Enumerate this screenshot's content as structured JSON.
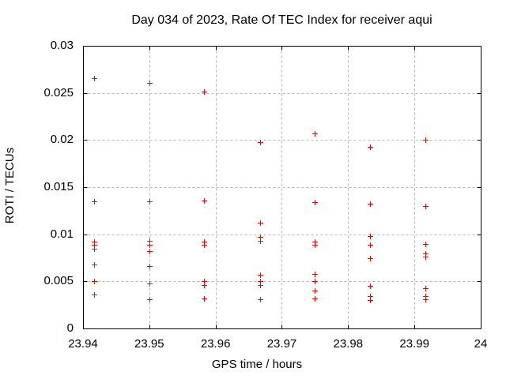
{
  "chart_data": {
    "type": "scatter",
    "title": "Day 034 of 2023, Rate Of TEC Index for receiver aqui",
    "xlabel": "GPS time / hours",
    "ylabel": "ROTI / TECUs",
    "xlim": [
      23.94,
      24
    ],
    "ylim": [
      0,
      0.03
    ],
    "xticks": [
      23.94,
      23.95,
      23.96,
      23.97,
      23.98,
      23.99,
      24
    ],
    "xtick_labels": [
      "23.94",
      "23.95",
      "23.96",
      "23.97",
      "23.98",
      "23.99",
      "24"
    ],
    "yticks": [
      0,
      0.005,
      0.01,
      0.015,
      0.02,
      0.025,
      0.03
    ],
    "ytick_labels": [
      "0",
      "0.005",
      "0.01",
      "0.015",
      "0.02",
      "0.025",
      "0.03"
    ],
    "grid": true,
    "legend": "none",
    "marker": {
      "shape": "plus",
      "size": 7
    },
    "colors": {
      "marker": "#ff0000",
      "grid": "#b2b2b2",
      "border": "#000000",
      "text": "#000000",
      "background": "#ffffff"
    },
    "series": [
      {
        "name": "ROTI",
        "points": [
          [
            23.9417,
            0.0266
          ],
          [
            23.9417,
            0.0135
          ],
          [
            23.9417,
            0.0092
          ],
          [
            23.9417,
            0.0089
          ],
          [
            23.9417,
            0.0085
          ],
          [
            23.9417,
            0.0068
          ],
          [
            23.9417,
            0.005
          ],
          [
            23.9417,
            0.0036
          ],
          [
            23.95,
            0.0261
          ],
          [
            23.95,
            0.0135
          ],
          [
            23.95,
            0.0093
          ],
          [
            23.95,
            0.0089
          ],
          [
            23.95,
            0.0082
          ],
          [
            23.95,
            0.0066
          ],
          [
            23.95,
            0.0048
          ],
          [
            23.95,
            0.0031
          ],
          [
            23.9583,
            0.0251
          ],
          [
            23.9583,
            0.0136
          ],
          [
            23.9583,
            0.0092
          ],
          [
            23.9583,
            0.0089
          ],
          [
            23.9583,
            0.005
          ],
          [
            23.9583,
            0.0046
          ],
          [
            23.9583,
            0.0032
          ],
          [
            23.9667,
            0.0198
          ],
          [
            23.9667,
            0.0112
          ],
          [
            23.9667,
            0.0097
          ],
          [
            23.9667,
            0.0093
          ],
          [
            23.9667,
            0.0057
          ],
          [
            23.9667,
            0.005
          ],
          [
            23.9667,
            0.0046
          ],
          [
            23.9667,
            0.0031
          ],
          [
            23.975,
            0.0207
          ],
          [
            23.975,
            0.0134
          ],
          [
            23.975,
            0.0092
          ],
          [
            23.975,
            0.0089
          ],
          [
            23.975,
            0.0058
          ],
          [
            23.975,
            0.005
          ],
          [
            23.975,
            0.004
          ],
          [
            23.975,
            0.0032
          ],
          [
            23.9833,
            0.0193
          ],
          [
            23.9833,
            0.0132
          ],
          [
            23.9833,
            0.0098
          ],
          [
            23.9833,
            0.0089
          ],
          [
            23.9833,
            0.0075
          ],
          [
            23.9833,
            0.0045
          ],
          [
            23.9833,
            0.0034
          ],
          [
            23.9833,
            0.003
          ],
          [
            23.9917,
            0.02
          ],
          [
            23.9917,
            0.013
          ],
          [
            23.9917,
            0.009
          ],
          [
            23.9917,
            0.008
          ],
          [
            23.9917,
            0.0076
          ],
          [
            23.9917,
            0.0043
          ],
          [
            23.9917,
            0.0034
          ],
          [
            23.9917,
            0.0031
          ]
        ]
      }
    ]
  }
}
